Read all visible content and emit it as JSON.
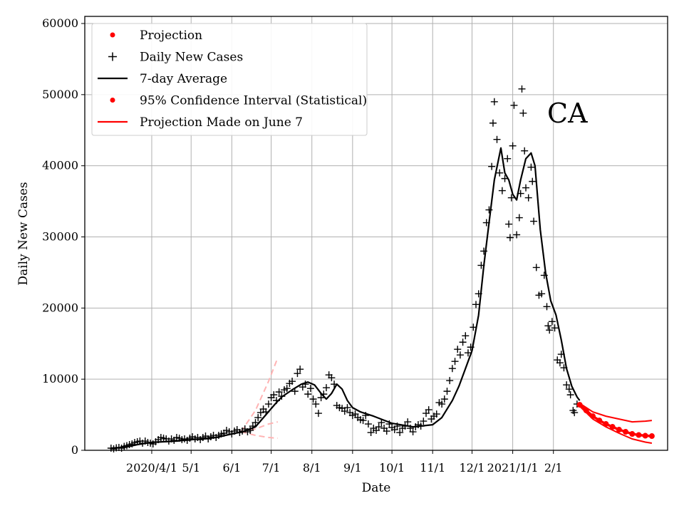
{
  "chart_data": {
    "type": "line",
    "state_label": "CA",
    "xlabel": "Date",
    "ylabel": "Daily New Cases",
    "ylim": [
      0,
      61000
    ],
    "xlim_day": [
      -20,
      424
    ],
    "y_ticks": [
      0,
      10000,
      20000,
      30000,
      40000,
      50000,
      60000
    ],
    "x_ticks": [
      {
        "label": "2020/4/1",
        "day": 31
      },
      {
        "label": "5/1",
        "day": 61
      },
      {
        "label": "6/1",
        "day": 92
      },
      {
        "label": "7/1",
        "day": 122
      },
      {
        "label": "8/1",
        "day": 153
      },
      {
        "label": "9/1",
        "day": 184
      },
      {
        "label": "10/1",
        "day": 214
      },
      {
        "label": "11/1",
        "day": 245
      },
      {
        "label": "12/1",
        "day": 275
      },
      {
        "label": "2021/1/1",
        "day": 306
      },
      {
        "label": "2/1",
        "day": 337
      }
    ],
    "grid": true,
    "legend_position": "top-left",
    "legend": [
      {
        "label": "Projection",
        "marker": "dot",
        "color": "#ff0000"
      },
      {
        "label": "Daily New Cases",
        "marker": "plus",
        "color": "#000000"
      },
      {
        "label": "7-day Average",
        "marker": "line",
        "color": "#000000"
      },
      {
        "label": "95% Confidence Interval (Statistical)",
        "marker": "dot",
        "color": "#ff0000"
      },
      {
        "label": "Projection Made on June 7",
        "marker": "line",
        "color": "#ff0000"
      }
    ],
    "avg_keypoints": [
      [
        0,
        300
      ],
      [
        10,
        400
      ],
      [
        20,
        800
      ],
      [
        30,
        1100
      ],
      [
        40,
        1200
      ],
      [
        50,
        1300
      ],
      [
        61,
        1500
      ],
      [
        70,
        1600
      ],
      [
        80,
        1800
      ],
      [
        92,
        2300
      ],
      [
        100,
        2600
      ],
      [
        110,
        3300
      ],
      [
        118,
        5000
      ],
      [
        125,
        6500
      ],
      [
        130,
        7500
      ],
      [
        138,
        8500
      ],
      [
        145,
        9300
      ],
      [
        150,
        9600
      ],
      [
        155,
        9200
      ],
      [
        160,
        8000
      ],
      [
        164,
        7200
      ],
      [
        168,
        8000
      ],
      [
        172,
        9300
      ],
      [
        176,
        8600
      ],
      [
        180,
        7000
      ],
      [
        184,
        6000
      ],
      [
        190,
        5400
      ],
      [
        200,
        4800
      ],
      [
        214,
        3800
      ],
      [
        230,
        3300
      ],
      [
        245,
        3600
      ],
      [
        252,
        4600
      ],
      [
        260,
        7000
      ],
      [
        265,
        9000
      ],
      [
        270,
        11500
      ],
      [
        275,
        14000
      ],
      [
        280,
        19000
      ],
      [
        284,
        26000
      ],
      [
        288,
        32000
      ],
      [
        292,
        38000
      ],
      [
        297,
        42500
      ],
      [
        300,
        39000
      ],
      [
        303,
        38000
      ],
      [
        306,
        36000
      ],
      [
        309,
        35200
      ],
      [
        312,
        38000
      ],
      [
        316,
        41000
      ],
      [
        320,
        41800
      ],
      [
        323,
        40000
      ],
      [
        327,
        31000
      ],
      [
        331,
        25000
      ],
      [
        335,
        21000
      ],
      [
        339,
        19000
      ],
      [
        343,
        15500
      ],
      [
        347,
        11500
      ],
      [
        351,
        9000
      ],
      [
        355,
        7500
      ],
      [
        357,
        7000
      ]
    ],
    "projection_center": [
      [
        357,
        6400
      ],
      [
        362,
        5600
      ],
      [
        367,
        4800
      ],
      [
        372,
        4200
      ],
      [
        377,
        3700
      ],
      [
        382,
        3300
      ],
      [
        387,
        2900
      ],
      [
        392,
        2600
      ],
      [
        397,
        2300
      ],
      [
        402,
        2150
      ],
      [
        407,
        2050
      ],
      [
        412,
        2000
      ]
    ],
    "ci_upper": [
      [
        357,
        6600
      ],
      [
        367,
        5400
      ],
      [
        377,
        4800
      ],
      [
        387,
        4400
      ],
      [
        397,
        4000
      ],
      [
        407,
        4100
      ],
      [
        412,
        4200
      ]
    ],
    "ci_lower": [
      [
        357,
        6200
      ],
      [
        367,
        4400
      ],
      [
        377,
        3300
      ],
      [
        387,
        2400
      ],
      [
        397,
        1600
      ],
      [
        407,
        1150
      ],
      [
        412,
        1000
      ]
    ],
    "june7_projection": {
      "center": [
        [
          99,
          2600
        ],
        [
          110,
          3000
        ],
        [
          120,
          3700
        ],
        [
          127,
          4000
        ]
      ],
      "upper": [
        [
          99,
          2600
        ],
        [
          110,
          5600
        ],
        [
          120,
          9700
        ],
        [
          127,
          13000
        ]
      ],
      "lower": [
        [
          99,
          2600
        ],
        [
          110,
          2100
        ],
        [
          120,
          1800
        ],
        [
          127,
          1700
        ]
      ]
    },
    "daily_points": [
      [
        0,
        300
      ],
      [
        2,
        200
      ],
      [
        4,
        350
      ],
      [
        6,
        400
      ],
      [
        8,
        300
      ],
      [
        10,
        550
      ],
      [
        12,
        650
      ],
      [
        14,
        800
      ],
      [
        16,
        900
      ],
      [
        18,
        1100
      ],
      [
        20,
        1200
      ],
      [
        22,
        1300
      ],
      [
        24,
        1000
      ],
      [
        26,
        1300
      ],
      [
        28,
        1100
      ],
      [
        30,
        1000
      ],
      [
        32,
        900
      ],
      [
        34,
        1200
      ],
      [
        36,
        1500
      ],
      [
        38,
        1800
      ],
      [
        40,
        1700
      ],
      [
        42,
        1600
      ],
      [
        44,
        1300
      ],
      [
        46,
        1600
      ],
      [
        48,
        1400
      ],
      [
        50,
        1800
      ],
      [
        52,
        1700
      ],
      [
        54,
        1500
      ],
      [
        56,
        1600
      ],
      [
        58,
        1400
      ],
      [
        60,
        1700
      ],
      [
        62,
        1900
      ],
      [
        64,
        1600
      ],
      [
        66,
        1800
      ],
      [
        68,
        1500
      ],
      [
        70,
        1800
      ],
      [
        72,
        2000
      ],
      [
        74,
        1600
      ],
      [
        76,
        1900
      ],
      [
        78,
        2100
      ],
      [
        80,
        1800
      ],
      [
        82,
        2100
      ],
      [
        84,
        2300
      ],
      [
        86,
        2400
      ],
      [
        88,
        2800
      ],
      [
        90,
        2600
      ],
      [
        92,
        2300
      ],
      [
        94,
        2700
      ],
      [
        96,
        2900
      ],
      [
        98,
        2500
      ],
      [
        100,
        2700
      ],
      [
        102,
        3000
      ],
      [
        104,
        2600
      ],
      [
        106,
        2800
      ],
      [
        108,
        3400
      ],
      [
        110,
        3900
      ],
      [
        112,
        4600
      ],
      [
        114,
        5300
      ],
      [
        116,
        5800
      ],
      [
        118,
        5400
      ],
      [
        120,
        6500
      ],
      [
        122,
        7400
      ],
      [
        124,
        7800
      ],
      [
        126,
        7000
      ],
      [
        128,
        8200
      ],
      [
        130,
        7600
      ],
      [
        132,
        8500
      ],
      [
        134,
        8700
      ],
      [
        136,
        9400
      ],
      [
        138,
        9700
      ],
      [
        140,
        8300
      ],
      [
        142,
        10800
      ],
      [
        144,
        11400
      ],
      [
        146,
        8900
      ],
      [
        148,
        9300
      ],
      [
        150,
        7900
      ],
      [
        152,
        8700
      ],
      [
        154,
        7200
      ],
      [
        156,
        6500
      ],
      [
        158,
        5200
      ],
      [
        160,
        7400
      ],
      [
        162,
        7900
      ],
      [
        164,
        8800
      ],
      [
        166,
        10600
      ],
      [
        168,
        10200
      ],
      [
        170,
        9300
      ],
      [
        172,
        6300
      ],
      [
        174,
        6000
      ],
      [
        176,
        5900
      ],
      [
        178,
        5500
      ],
      [
        180,
        6000
      ],
      [
        182,
        5300
      ],
      [
        184,
        4900
      ],
      [
        186,
        5100
      ],
      [
        188,
        4600
      ],
      [
        190,
        4300
      ],
      [
        192,
        4200
      ],
      [
        194,
        4900
      ],
      [
        196,
        3700
      ],
      [
        198,
        2500
      ],
      [
        200,
        3100
      ],
      [
        202,
        2800
      ],
      [
        204,
        3300
      ],
      [
        206,
        3900
      ],
      [
        208,
        3100
      ],
      [
        210,
        2700
      ],
      [
        212,
        3700
      ],
      [
        214,
        3200
      ],
      [
        216,
        2900
      ],
      [
        218,
        3400
      ],
      [
        220,
        2500
      ],
      [
        222,
        3100
      ],
      [
        224,
        3400
      ],
      [
        226,
        4000
      ],
      [
        228,
        3100
      ],
      [
        230,
        2600
      ],
      [
        232,
        3300
      ],
      [
        234,
        3600
      ],
      [
        236,
        3400
      ],
      [
        238,
        4100
      ],
      [
        240,
        5200
      ],
      [
        242,
        5700
      ],
      [
        244,
        4400
      ],
      [
        246,
        4800
      ],
      [
        248,
        5100
      ],
      [
        250,
        6700
      ],
      [
        252,
        6500
      ],
      [
        254,
        7200
      ],
      [
        256,
        8300
      ],
      [
        258,
        9800
      ],
      [
        260,
        11500
      ],
      [
        262,
        12500
      ],
      [
        264,
        14200
      ],
      [
        266,
        13400
      ],
      [
        268,
        15200
      ],
      [
        270,
        16100
      ],
      [
        272,
        13700
      ],
      [
        274,
        14500
      ],
      [
        276,
        17300
      ],
      [
        278,
        20500
      ],
      [
        280,
        22000
      ],
      [
        282,
        26000
      ],
      [
        284,
        28000
      ],
      [
        286,
        32000
      ],
      [
        288,
        33800
      ],
      [
        290,
        39900
      ],
      [
        291,
        46000
      ],
      [
        292,
        49000
      ],
      [
        294,
        43700
      ],
      [
        296,
        39000
      ],
      [
        298,
        36500
      ],
      [
        300,
        38200
      ],
      [
        302,
        41000
      ],
      [
        303,
        31800
      ],
      [
        304,
        29900
      ],
      [
        305,
        35500
      ],
      [
        306,
        42800
      ],
      [
        307,
        48500
      ],
      [
        309,
        30300
      ],
      [
        311,
        32700
      ],
      [
        312,
        36100
      ],
      [
        313,
        50800
      ],
      [
        314,
        47400
      ],
      [
        315,
        42100
      ],
      [
        316,
        36900
      ],
      [
        318,
        35500
      ],
      [
        320,
        39800
      ],
      [
        321,
        37800
      ],
      [
        322,
        32200
      ],
      [
        324,
        25700
      ],
      [
        326,
        21800
      ],
      [
        328,
        22000
      ],
      [
        330,
        24600
      ],
      [
        332,
        20200
      ],
      [
        333,
        17500
      ],
      [
        334,
        16900
      ],
      [
        336,
        18100
      ],
      [
        338,
        17200
      ],
      [
        340,
        12700
      ],
      [
        342,
        12300
      ],
      [
        343,
        13500
      ],
      [
        345,
        11600
      ],
      [
        347,
        9200
      ],
      [
        349,
        8600
      ],
      [
        350,
        7800
      ],
      [
        352,
        5600
      ],
      [
        353,
        5300
      ],
      [
        355,
        6500
      ]
    ]
  }
}
